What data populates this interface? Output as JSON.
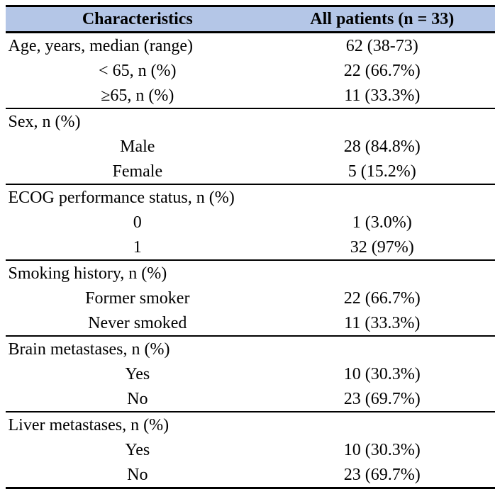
{
  "colors": {
    "header_bg": "#b4c6e7",
    "border": "#000000"
  },
  "table": {
    "header": {
      "characteristics": "Characteristics",
      "all_patients": "All patients (n = 33)"
    },
    "rows": [
      {
        "label": "Age, years, median (range)",
        "value": "62 (38-73)"
      },
      {
        "label": "< 65, n (%)",
        "value": "22 (66.7%)"
      },
      {
        "label": "≥65, n (%)",
        "value": "11 (33.3%)"
      },
      {
        "label": "Sex, n (%)",
        "value": ""
      },
      {
        "label": "Male",
        "value": "28 (84.8%)"
      },
      {
        "label": "Female",
        "value": "5 (15.2%)"
      },
      {
        "label": "ECOG performance status, n (%)",
        "value": ""
      },
      {
        "label": "0",
        "value": "1 (3.0%)"
      },
      {
        "label": "1",
        "value": "32 (97%)"
      },
      {
        "label": "Smoking history, n (%)",
        "value": ""
      },
      {
        "label": "Former smoker",
        "value": "22 (66.7%)"
      },
      {
        "label": "Never smoked",
        "value": "11 (33.3%)"
      },
      {
        "label": "Brain metastases, n (%)",
        "value": ""
      },
      {
        "label": "Yes",
        "value": "10 (30.3%)"
      },
      {
        "label": "No",
        "value": "23 (69.7%)"
      },
      {
        "label": "Liver metastases, n (%)",
        "value": ""
      },
      {
        "label": "Yes",
        "value": "10 (30.3%)"
      },
      {
        "label": "No",
        "value": "23 (69.7%)"
      }
    ]
  }
}
